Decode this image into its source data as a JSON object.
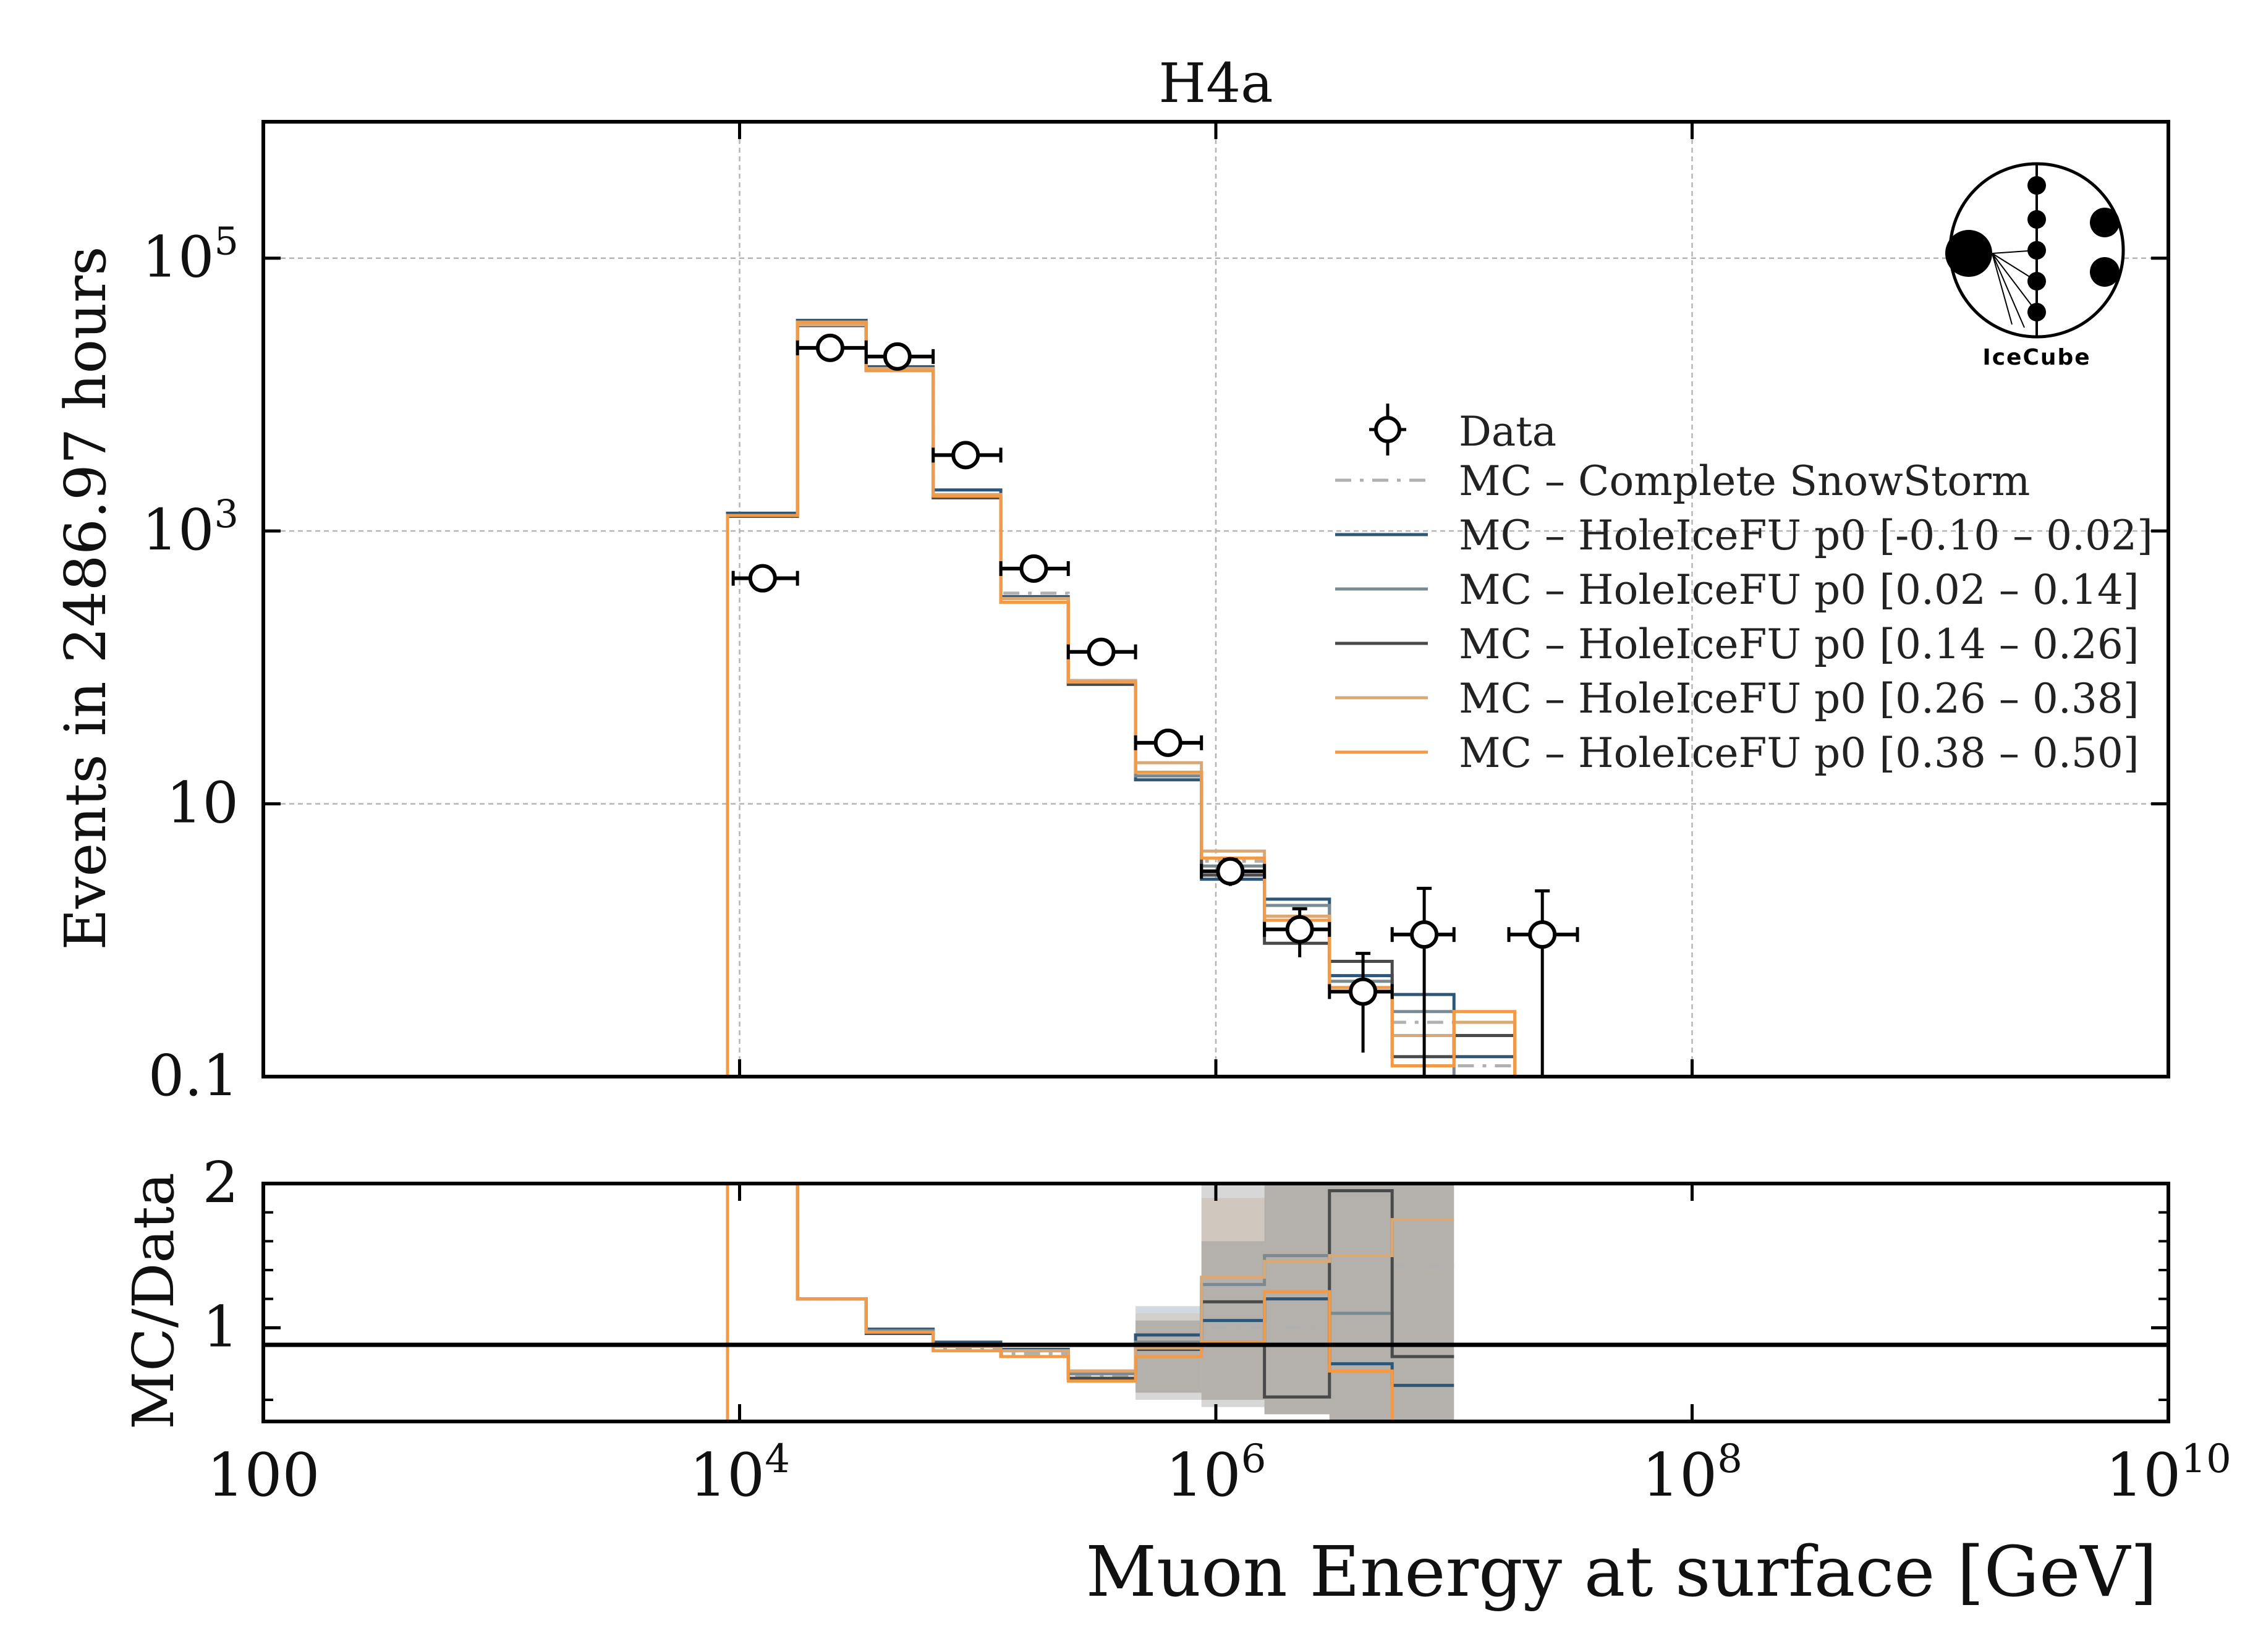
{
  "chart_data": [
    {
      "type": "line",
      "panel": "main",
      "title": "H4a",
      "ylabel": "Events in 2486.97 hours",
      "xlabel": "",
      "xscale": "log",
      "yscale": "log",
      "xlim": [
        100,
        10000000000
      ],
      "ylim": [
        0.1,
        1000000
      ],
      "grid": true,
      "legend_position": "center-right",
      "logo_text": "IceCube",
      "x_tick_labels": [
        "100",
        "10^4",
        "10^6",
        "10^8",
        "10^10"
      ],
      "y_ticks": [
        {
          "value": 0.1,
          "label": "0.1"
        },
        {
          "value": 10,
          "label": "10"
        },
        {
          "value": 1000,
          "label": "10",
          "sup": "3"
        },
        {
          "value": 100000,
          "label": "10",
          "sup": "5"
        }
      ],
      "bin_edges": [
        8900,
        17500,
        34000,
        65000,
        125000,
        240000,
        460000,
        870000,
        1600000,
        3000000,
        5500000,
        10000000,
        18000000
      ],
      "data_points": {
        "name": "Data",
        "x": [
          12500,
          24000,
          46000,
          89000,
          172000,
          330000,
          630000,
          1150000,
          2250000,
          4150000,
          7500000,
          23500000
        ],
        "xerr_low": [
          9400,
          17500,
          34000,
          65000,
          125000,
          240000,
          460000,
          870000,
          1600000,
          3000000,
          5500000,
          17000000
        ],
        "xerr_high": [
          17500,
          34000,
          65000,
          125000,
          240000,
          460000,
          870000,
          1600000,
          3000000,
          5500000,
          10000000,
          33000000
        ],
        "y": [
          450,
          22000,
          19000,
          3600,
          530,
          130,
          28,
          3.2,
          1.2,
          0.42,
          1.1,
          1.1
        ],
        "yerr_low": [
          430,
          21500,
          18500,
          3500,
          510,
          120,
          24,
          2.5,
          0.75,
          0.15,
          0.1,
          0.1
        ],
        "yerr_high": [
          470,
          22500,
          19500,
          3700,
          550,
          140,
          32,
          3.9,
          1.7,
          0.8,
          2.4,
          2.3
        ]
      },
      "series": [
        {
          "name": "MC – Complete SnowStorm",
          "color": "#b0b0b0",
          "dash": "dashdot",
          "values": [
            1300,
            33000,
            15000,
            1750,
            350,
            80,
            17,
            3.8,
            1.4,
            0.55,
            0.25,
            0.12
          ]
        },
        {
          "name": "MC – HoleIceFU p0 [-0.10 – 0.02]",
          "color": "#2e5677",
          "dash": "solid",
          "values": [
            1350,
            35000,
            16000,
            2000,
            330,
            78,
            15,
            2.8,
            2.0,
            0.55,
            0.4,
            0.14
          ]
        },
        {
          "name": "MC – HoleIceFU p0 [0.02 – 0.14]",
          "color": "#7a8a92",
          "dash": "solid",
          "values": [
            1300,
            33000,
            15500,
            1800,
            320,
            80,
            16,
            3.5,
            1.8,
            0.5,
            0.3,
            0.1
          ]
        },
        {
          "name": "MC – HoleIceFU p0 [0.14 – 0.26]",
          "color": "#4a4a4a",
          "dash": "solid",
          "values": [
            1280,
            32000,
            15000,
            1750,
            300,
            75,
            17,
            3.0,
            0.95,
            0.7,
            0.14,
            0.2
          ]
        },
        {
          "name": "MC – HoleIceFU p0 [0.26 – 0.38]",
          "color": "#d9a877",
          "dash": "solid",
          "values": [
            1300,
            32500,
            15500,
            1850,
            320,
            80,
            20,
            4.5,
            1.5,
            0.45,
            0.2,
            0.25
          ]
        },
        {
          "name": "MC – HoleIceFU p0 [0.38 – 0.50]",
          "color": "#f29a45",
          "dash": "solid",
          "values": [
            1300,
            34000,
            15000,
            1800,
            300,
            78,
            17,
            4.0,
            1.4,
            0.45,
            0.12,
            0.3
          ]
        }
      ]
    },
    {
      "type": "line",
      "panel": "ratio",
      "ylabel": "MC/Data",
      "xlabel": "Muon Energy at surface [GeV]",
      "xscale": "log",
      "xlim": [
        100,
        10000000000
      ],
      "ylim": [
        0.35,
        2.0
      ],
      "reference_line": 1,
      "y_tick_labels": [
        "1",
        "2"
      ],
      "x_tick_labels": [
        "100",
        "10^4",
        "10^6",
        "10^8",
        "10^10"
      ],
      "bin_edges": [
        8900,
        17500,
        34000,
        65000,
        125000,
        240000,
        460000,
        870000,
        1600000,
        3000000,
        5500000,
        10000000
      ],
      "series": [
        {
          "name": "MC – Complete SnowStorm",
          "color": "#b0b0b0",
          "dash": "dashdot",
          "values": [
            2.0,
            1.2,
            0.97,
            0.86,
            0.82,
            0.66,
            0.87,
            1.0,
            1.0,
            1.5,
            1.43
          ]
        },
        {
          "name": "MC – HoleIceFU p0 [-0.10 – 0.02]",
          "color": "#2e5677",
          "dash": "solid",
          "values": [
            2.0,
            1.2,
            0.99,
            0.9,
            0.85,
            0.7,
            0.95,
            1.05,
            1.2,
            0.75,
            0.6
          ]
        },
        {
          "name": "MC – HoleIceFU p0 [0.02 – 0.14]",
          "color": "#7a8a92",
          "dash": "solid",
          "values": [
            2.0,
            1.2,
            0.98,
            0.88,
            0.84,
            0.68,
            0.9,
            1.3,
            1.5,
            1.1,
            0.8
          ]
        },
        {
          "name": "MC – HoleIceFU p0 [0.14 – 0.26]",
          "color": "#4a4a4a",
          "dash": "solid",
          "values": [
            2.0,
            1.2,
            0.96,
            0.87,
            0.8,
            0.65,
            0.85,
            1.18,
            0.52,
            1.95,
            0.8
          ]
        },
        {
          "name": "MC – HoleIceFU p0 [0.26 – 0.38]",
          "color": "#d9a877",
          "dash": "solid",
          "values": [
            2.0,
            1.2,
            0.97,
            0.87,
            0.84,
            0.7,
            0.86,
            1.35,
            1.46,
            1.5,
            1.75
          ]
        },
        {
          "name": "MC – HoleIceFU p0 [0.38 – 0.50]",
          "color": "#f29a45",
          "dash": "solid",
          "values": [
            2.0,
            1.2,
            0.97,
            0.84,
            0.8,
            0.63,
            0.8,
            0.9,
            1.25,
            0.7,
            0.35
          ]
        }
      ],
      "error_bands": [
        {
          "color": "#2e5677",
          "low": [
            2.0,
            1.2,
            0.97,
            0.87,
            0.83,
            0.66,
            0.55,
            0.5,
            0.4,
            0.35,
            0.35
          ],
          "high": [
            2.0,
            1.2,
            0.99,
            0.9,
            0.86,
            0.7,
            1.15,
            1.6,
            2.0,
            2.0,
            2.0
          ]
        },
        {
          "color": "#d9a877",
          "low": [
            2.0,
            1.2,
            0.97,
            0.86,
            0.82,
            0.66,
            0.55,
            0.5,
            0.4,
            0.35,
            0.35
          ],
          "high": [
            2.0,
            1.2,
            0.99,
            0.89,
            0.86,
            0.7,
            1.1,
            1.9,
            2.0,
            2.0,
            2.0
          ]
        },
        {
          "color": "#4a4a4a",
          "low": [
            2.0,
            1.2,
            0.97,
            0.86,
            0.82,
            0.66,
            0.5,
            0.45,
            0.4,
            0.35,
            0.35
          ],
          "high": [
            2.0,
            1.2,
            0.99,
            0.89,
            0.86,
            0.7,
            1.05,
            2.0,
            2.0,
            2.0,
            2.0
          ]
        }
      ]
    }
  ]
}
